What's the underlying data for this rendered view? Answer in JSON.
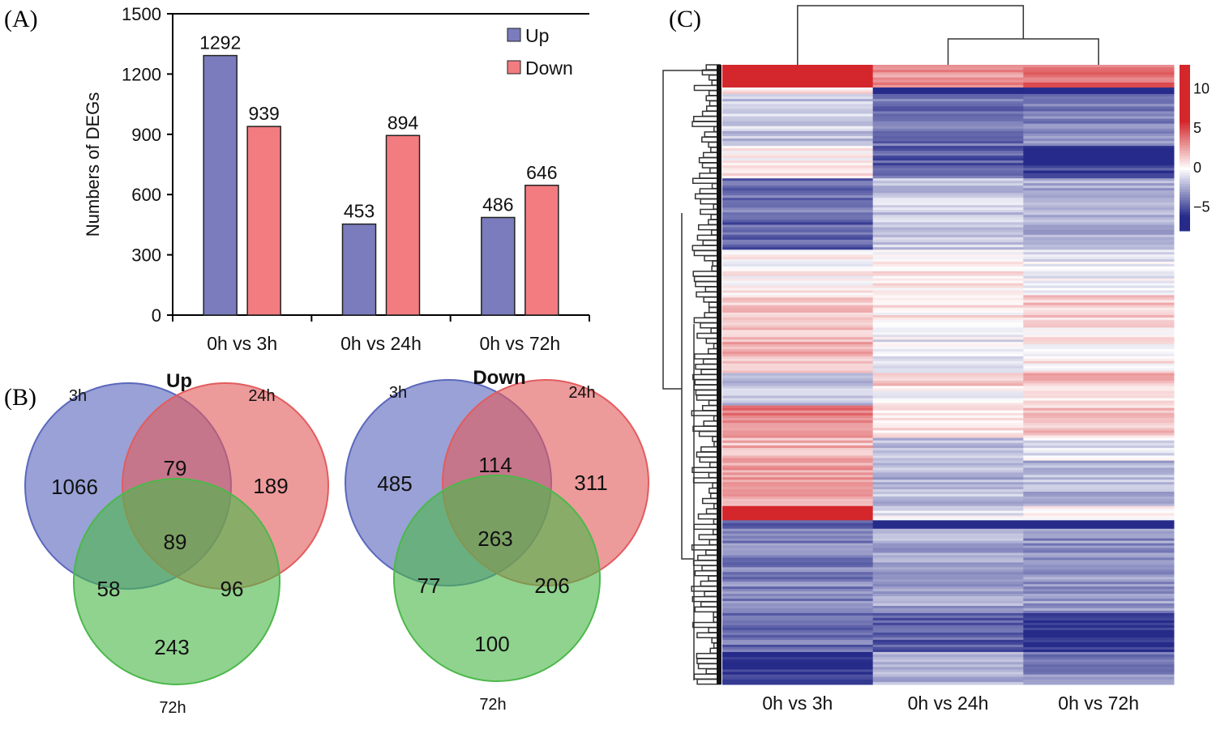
{
  "panels": {
    "a": "(A)",
    "b": "(B)",
    "c": "(C)"
  },
  "chart_data": [
    {
      "type": "bar",
      "panel": "A",
      "title": "",
      "xlabel": "",
      "ylabel": "Numbers of DEGs",
      "ylim": [
        0,
        1500
      ],
      "yticks": [
        0,
        300,
        600,
        900,
        1200,
        1500
      ],
      "categories": [
        "0h vs 3h",
        "0h vs 24h",
        "0h vs 72h"
      ],
      "series": [
        {
          "name": "Up",
          "color": "#7a7cbd",
          "values": [
            1292,
            453,
            486
          ]
        },
        {
          "name": "Down",
          "color": "#f27c80",
          "values": [
            939,
            894,
            646
          ]
        }
      ],
      "legend": "top-right",
      "grid": false
    },
    {
      "type": "venn",
      "panel": "B",
      "title": "Up",
      "sets": [
        "3h",
        "24h",
        "72h"
      ],
      "colors": [
        "#5b68bd",
        "#e25c5e",
        "#4cb84a"
      ],
      "regions": {
        "only_3h": 1066,
        "only_24h": 189,
        "only_72h": 243,
        "3h_24h": 79,
        "3h_72h": 58,
        "24h_72h": 96,
        "all": 89
      }
    },
    {
      "type": "venn",
      "panel": "B",
      "title": "Down",
      "sets": [
        "3h",
        "24h",
        "72h"
      ],
      "colors": [
        "#5b68bd",
        "#e25c5e",
        "#4cb84a"
      ],
      "regions": {
        "only_3h": 485,
        "only_24h": 311,
        "only_72h": 100,
        "3h_24h": 114,
        "3h_72h": 77,
        "24h_72h": 206,
        "all": 263
      }
    },
    {
      "type": "heatmap",
      "panel": "C",
      "columns": [
        "0h vs 3h",
        "0h vs 24h",
        "0h vs 72h"
      ],
      "colorbar": {
        "min": -8,
        "max": 13,
        "ticks": [
          10,
          5,
          0,
          -5
        ],
        "low_color": "#262b8a",
        "mid_color": "#ffffff",
        "high_color": "#d4272c"
      },
      "row_blocks": [
        {
          "frac": 0.035,
          "values": [
            11,
            3,
            4
          ]
        },
        {
          "frac": 0.01,
          "values": [
            0.5,
            -7,
            -6
          ]
        },
        {
          "frac": 0.08,
          "values": [
            -1.5,
            -4,
            -3.5
          ]
        },
        {
          "frac": 0.03,
          "values": [
            0.3,
            -4.5,
            -6.5
          ]
        },
        {
          "frac": 0.02,
          "values": [
            1.2,
            -3.5,
            -5
          ]
        },
        {
          "frac": 0.06,
          "values": [
            -4,
            -1.5,
            -2.5
          ]
        },
        {
          "frac": 0.05,
          "values": [
            -4.5,
            -1.5,
            -2
          ]
        },
        {
          "frac": 0.07,
          "values": [
            0.2,
            0.5,
            -0.5
          ]
        },
        {
          "frac": 0.05,
          "values": [
            1.5,
            0.5,
            1.5
          ]
        },
        {
          "frac": 0.07,
          "values": [
            2,
            -0.5,
            0.5
          ]
        },
        {
          "frac": 0.02,
          "values": [
            -2,
            1.5,
            2
          ]
        },
        {
          "frac": 0.03,
          "values": [
            -1.5,
            0.2,
            1.2
          ]
        },
        {
          "frac": 0.05,
          "values": [
            3.5,
            0.5,
            1.5
          ]
        },
        {
          "frac": 0.035,
          "values": [
            2,
            -1.5,
            -0.5
          ]
        },
        {
          "frac": 0.07,
          "values": [
            2.5,
            -2,
            -2
          ]
        },
        {
          "frac": 0.022,
          "values": [
            9.5,
            -0.5,
            0.5
          ]
        },
        {
          "frac": 0.013,
          "values": [
            -5,
            -7.5,
            -7.5
          ]
        },
        {
          "frac": 0.13,
          "values": [
            -3.5,
            -2.5,
            -3
          ]
        },
        {
          "frac": 0.06,
          "values": [
            -4,
            -4.5,
            -6
          ]
        },
        {
          "frac": 0.05,
          "values": [
            -6,
            -2,
            -3.5
          ]
        }
      ]
    }
  ]
}
